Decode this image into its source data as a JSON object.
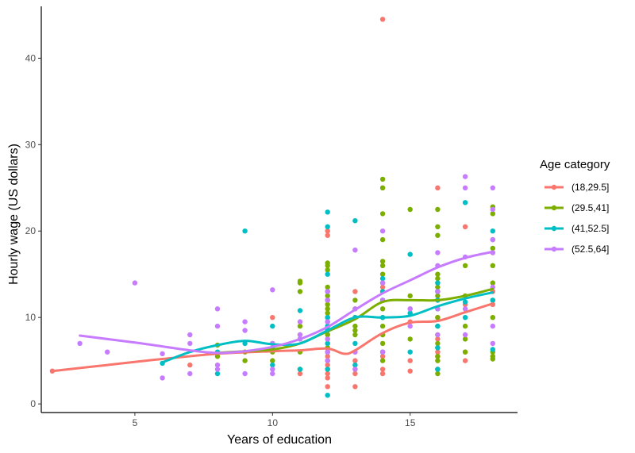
{
  "chart_data": {
    "type": "scatter",
    "xlabel": "Years of education",
    "ylabel": "Hourly wage (US dollars)",
    "xlim": [
      1.6,
      18.9
    ],
    "ylim": [
      -1,
      46
    ],
    "x_ticks": [
      5,
      10,
      15
    ],
    "y_ticks": [
      0,
      10,
      20,
      30,
      40
    ],
    "grid": false,
    "legend": {
      "title": "Age category",
      "position": "right"
    },
    "series": [
      {
        "name": "(18,29.5]",
        "color": "#F8766D",
        "points": [
          [
            2,
            3.8
          ],
          [
            7,
            4.5
          ],
          [
            10,
            10.0
          ],
          [
            11,
            4.0
          ],
          [
            11,
            3.5
          ],
          [
            12,
            5.0
          ],
          [
            12,
            5.5
          ],
          [
            12,
            6.0
          ],
          [
            12,
            4.5
          ],
          [
            12,
            3.0
          ],
          [
            12,
            2.0
          ],
          [
            12,
            19.5
          ],
          [
            12,
            20.0
          ],
          [
            12,
            12.0
          ],
          [
            12,
            7.0
          ],
          [
            12,
            8.0
          ],
          [
            12,
            3.5
          ],
          [
            13,
            2.0
          ],
          [
            13,
            5.0
          ],
          [
            13,
            6.0
          ],
          [
            13,
            3.5
          ],
          [
            13,
            13.0
          ],
          [
            13,
            4.0
          ],
          [
            13,
            10.0
          ],
          [
            14,
            44.5
          ],
          [
            14,
            25.0
          ],
          [
            14,
            3.5
          ],
          [
            14,
            4.0
          ],
          [
            14,
            5.5
          ],
          [
            14,
            8.0
          ],
          [
            14,
            12.0
          ],
          [
            14,
            13.5
          ],
          [
            15,
            11.0
          ],
          [
            15,
            5.0
          ],
          [
            15,
            3.8
          ],
          [
            15,
            9.5
          ],
          [
            16,
            25.0
          ],
          [
            16,
            10.0
          ],
          [
            16,
            6.0
          ],
          [
            16,
            7.5
          ],
          [
            16,
            5.5
          ],
          [
            16,
            4.0
          ],
          [
            17,
            20.5
          ],
          [
            17,
            6.0
          ],
          [
            17,
            5.0
          ],
          [
            17,
            11.5
          ],
          [
            18,
            17.5
          ],
          [
            18,
            11.5
          ],
          [
            18,
            13.0
          ]
        ],
        "smooth": [
          [
            2,
            3.8
          ],
          [
            4,
            4.5
          ],
          [
            6,
            5.2
          ],
          [
            8,
            5.8
          ],
          [
            10,
            6.1
          ],
          [
            11,
            6.2
          ],
          [
            12,
            6.4
          ],
          [
            12.6,
            5.8
          ],
          [
            13,
            6.2
          ],
          [
            14,
            8.2
          ],
          [
            15,
            9.4
          ],
          [
            16,
            9.6
          ],
          [
            17,
            10.6
          ],
          [
            18,
            11.6
          ]
        ]
      },
      {
        "name": "(29.5,41]",
        "color": "#7CAE00",
        "points": [
          [
            8,
            6.8
          ],
          [
            8,
            5.5
          ],
          [
            9,
            6.0
          ],
          [
            9,
            5.0
          ],
          [
            10,
            5.0
          ],
          [
            10,
            6.0
          ],
          [
            10,
            7.0
          ],
          [
            11,
            14.2
          ],
          [
            11,
            14.0
          ],
          [
            11,
            13.0
          ],
          [
            11,
            9.0
          ],
          [
            11,
            8.0
          ],
          [
            11,
            6.0
          ],
          [
            11,
            4.0
          ],
          [
            12,
            16.0
          ],
          [
            12,
            16.3
          ],
          [
            12,
            15.5
          ],
          [
            12,
            13.5
          ],
          [
            12,
            13.0
          ],
          [
            12,
            12.5
          ],
          [
            12,
            12.0
          ],
          [
            12,
            11.5
          ],
          [
            12,
            11.0
          ],
          [
            12,
            10.5
          ],
          [
            12,
            10.0
          ],
          [
            12,
            9.5
          ],
          [
            12,
            9.0
          ],
          [
            12,
            8.5
          ],
          [
            12,
            8.0
          ],
          [
            12,
            7.5
          ],
          [
            12,
            7.0
          ],
          [
            12,
            6.5
          ],
          [
            12,
            6.0
          ],
          [
            12,
            5.0
          ],
          [
            12,
            4.0
          ],
          [
            13,
            12.0
          ],
          [
            13,
            11.0
          ],
          [
            13,
            10.0
          ],
          [
            13,
            9.0
          ],
          [
            13,
            8.0
          ],
          [
            13,
            8.5
          ],
          [
            14,
            26.0
          ],
          [
            14,
            25.0
          ],
          [
            14,
            22.0
          ],
          [
            14,
            19.0
          ],
          [
            14,
            16.5
          ],
          [
            14,
            16.0
          ],
          [
            14,
            15.0
          ],
          [
            14,
            14.0
          ],
          [
            14,
            13.0
          ],
          [
            14,
            12.0
          ],
          [
            14,
            11.0
          ],
          [
            14,
            10.0
          ],
          [
            14,
            9.0
          ],
          [
            14,
            8.0
          ],
          [
            14,
            7.0
          ],
          [
            14,
            6.0
          ],
          [
            14,
            5.0
          ],
          [
            15,
            22.5
          ],
          [
            15,
            12.5
          ],
          [
            15,
            7.5
          ],
          [
            16,
            22.5
          ],
          [
            16,
            20.5
          ],
          [
            16,
            19.5
          ],
          [
            16,
            15.0
          ],
          [
            16,
            14.5
          ],
          [
            16,
            14.0
          ],
          [
            16,
            13.5
          ],
          [
            16,
            13.0
          ],
          [
            16,
            12.5
          ],
          [
            16,
            12.0
          ],
          [
            16,
            11.0
          ],
          [
            16,
            10.0
          ],
          [
            16,
            9.0
          ],
          [
            16,
            8.0
          ],
          [
            16,
            7.0
          ],
          [
            16,
            6.5
          ],
          [
            16,
            5.5
          ],
          [
            16,
            5.0
          ],
          [
            16,
            4.0
          ],
          [
            16,
            3.5
          ],
          [
            17,
            16.0
          ],
          [
            17,
            12.5
          ],
          [
            17,
            9.0
          ],
          [
            17,
            7.5
          ],
          [
            17,
            6.0
          ],
          [
            18,
            22.8
          ],
          [
            18,
            22.0
          ],
          [
            18,
            19.0
          ],
          [
            18,
            18.0
          ],
          [
            18,
            16.0
          ],
          [
            18,
            14.0
          ],
          [
            18,
            12.0
          ],
          [
            18,
            10.0
          ],
          [
            18,
            6.0
          ],
          [
            18,
            5.5
          ],
          [
            18,
            5.2
          ]
        ],
        "smooth": [
          [
            8,
            5.9
          ],
          [
            9,
            6.1
          ],
          [
            10,
            6.3
          ],
          [
            11,
            7.0
          ],
          [
            12,
            8.4
          ],
          [
            13,
            9.8
          ],
          [
            14,
            11.8
          ],
          [
            15,
            12.0
          ],
          [
            16,
            12.0
          ],
          [
            17,
            12.5
          ],
          [
            18,
            13.3
          ]
        ]
      },
      {
        "name": "(41,52.5]",
        "color": "#00BFC4",
        "points": [
          [
            6,
            4.7
          ],
          [
            8,
            3.5
          ],
          [
            8,
            6.0
          ],
          [
            9,
            20.0
          ],
          [
            9,
            7.0
          ],
          [
            10,
            9.0
          ],
          [
            10,
            4.5
          ],
          [
            10,
            6.5
          ],
          [
            11,
            10.8
          ],
          [
            11,
            4.0
          ],
          [
            11,
            7.5
          ],
          [
            12,
            22.2
          ],
          [
            12,
            20.5
          ],
          [
            12,
            15.0
          ],
          [
            12,
            13.0
          ],
          [
            12,
            10.0
          ],
          [
            12,
            9.0
          ],
          [
            12,
            8.5
          ],
          [
            12,
            7.0
          ],
          [
            12,
            6.0
          ],
          [
            12,
            4.0
          ],
          [
            12,
            1.0
          ],
          [
            13,
            21.2
          ],
          [
            13,
            10.0
          ],
          [
            13,
            7.0
          ],
          [
            13,
            4.5
          ],
          [
            14,
            14.5
          ],
          [
            14,
            13.0
          ],
          [
            14,
            12.0
          ],
          [
            14,
            10.0
          ],
          [
            14,
            6.0
          ],
          [
            15,
            17.3
          ],
          [
            15,
            10.5
          ],
          [
            15,
            6.0
          ],
          [
            16,
            14.0
          ],
          [
            16,
            13.0
          ],
          [
            16,
            12.0
          ],
          [
            16,
            11.0
          ],
          [
            16,
            9.0
          ],
          [
            16,
            6.5
          ],
          [
            16,
            4.0
          ],
          [
            17,
            23.3
          ],
          [
            17,
            11.8
          ],
          [
            17,
            10.0
          ],
          [
            18,
            20.0
          ],
          [
            18,
            12.0
          ],
          [
            18,
            6.3
          ]
        ],
        "smooth": [
          [
            6,
            4.8
          ],
          [
            7,
            6.0
          ],
          [
            8,
            6.8
          ],
          [
            9,
            7.3
          ],
          [
            10,
            6.9
          ],
          [
            11,
            7.0
          ],
          [
            12,
            8.5
          ],
          [
            13,
            10.0
          ],
          [
            14,
            10.0
          ],
          [
            15,
            10.2
          ],
          [
            16,
            11.3
          ],
          [
            17,
            12.2
          ],
          [
            18,
            12.9
          ]
        ]
      },
      {
        "name": "(52.5,64]",
        "color": "#C77CFF",
        "points": [
          [
            3,
            7.0
          ],
          [
            4,
            6.0
          ],
          [
            5,
            14.0
          ],
          [
            6,
            3.0
          ],
          [
            6,
            5.8
          ],
          [
            7,
            8.0
          ],
          [
            7,
            7.0
          ],
          [
            7,
            3.5
          ],
          [
            8,
            11.0
          ],
          [
            8,
            9.0
          ],
          [
            8,
            4.5
          ],
          [
            8,
            4.0
          ],
          [
            9,
            9.5
          ],
          [
            9,
            8.5
          ],
          [
            9,
            3.5
          ],
          [
            10,
            13.2
          ],
          [
            10,
            7.0
          ],
          [
            10,
            4.0
          ],
          [
            10,
            3.5
          ],
          [
            11,
            9.5
          ],
          [
            11,
            8.0
          ],
          [
            11,
            7.5
          ],
          [
            12,
            12.0
          ],
          [
            12,
            13.0
          ],
          [
            12,
            9.5
          ],
          [
            12,
            7.5
          ],
          [
            12,
            6.0
          ],
          [
            12,
            5.0
          ],
          [
            13,
            17.8
          ],
          [
            13,
            11.0
          ],
          [
            13,
            6.0
          ],
          [
            13,
            4.0
          ],
          [
            14,
            20.0
          ],
          [
            14,
            14.0
          ],
          [
            14,
            12.0
          ],
          [
            14,
            6.0
          ],
          [
            15,
            11.0
          ],
          [
            15,
            9.0
          ],
          [
            16,
            17.5
          ],
          [
            16,
            16.0
          ],
          [
            16,
            13.0
          ],
          [
            16,
            11.0
          ],
          [
            16,
            8.0
          ],
          [
            17,
            26.3
          ],
          [
            17,
            25.0
          ],
          [
            17,
            17.0
          ],
          [
            17,
            11.0
          ],
          [
            17,
            8.0
          ],
          [
            18,
            25.0
          ],
          [
            18,
            22.5
          ],
          [
            18,
            19.0
          ],
          [
            18,
            17.5
          ],
          [
            18,
            13.5
          ],
          [
            18,
            9.0
          ],
          [
            18,
            7.0
          ]
        ],
        "smooth": [
          [
            3,
            7.9
          ],
          [
            5,
            7.1
          ],
          [
            7,
            6.2
          ],
          [
            8,
            5.9
          ],
          [
            9,
            6.1
          ],
          [
            10,
            6.6
          ],
          [
            11,
            7.5
          ],
          [
            12,
            8.9
          ],
          [
            13,
            10.9
          ],
          [
            14,
            12.8
          ],
          [
            15,
            14.3
          ],
          [
            16,
            15.8
          ],
          [
            17,
            16.9
          ],
          [
            18,
            17.6
          ]
        ]
      }
    ]
  }
}
